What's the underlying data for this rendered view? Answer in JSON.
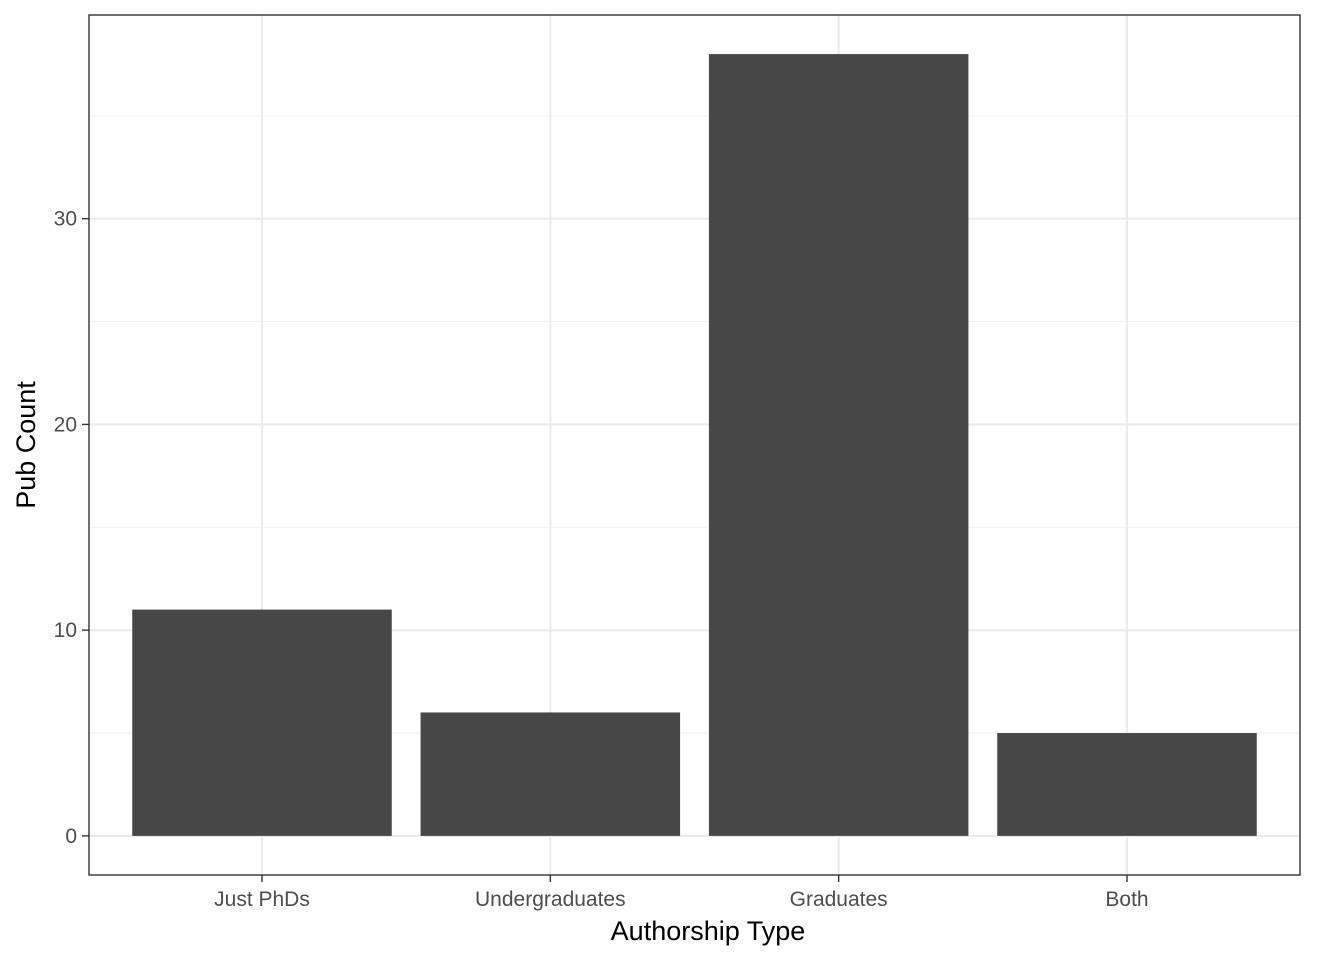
{
  "chart_data": {
    "type": "bar",
    "title": "",
    "xlabel": "Authorship Type",
    "ylabel": "Pub Count",
    "categories": [
      "Just PhDs",
      "Undergraduates",
      "Graduates",
      "Both"
    ],
    "values": [
      11,
      6,
      38,
      5
    ],
    "ylim": [
      -1.9,
      39.9
    ],
    "yticks": [
      0,
      10,
      20,
      30
    ],
    "ytick_labels": [
      "0",
      "10",
      "20",
      "30"
    ],
    "y_minor_ticks": [
      5,
      15,
      25,
      35
    ],
    "grid": true,
    "legend": "none",
    "colors": {
      "bar": "#474747",
      "grid_major": "#ebebeb",
      "grid_minor": "#f2f2f2",
      "panel_border": "#333333",
      "tick_text": "#4d4d4d",
      "axis_title": "#000000"
    }
  }
}
